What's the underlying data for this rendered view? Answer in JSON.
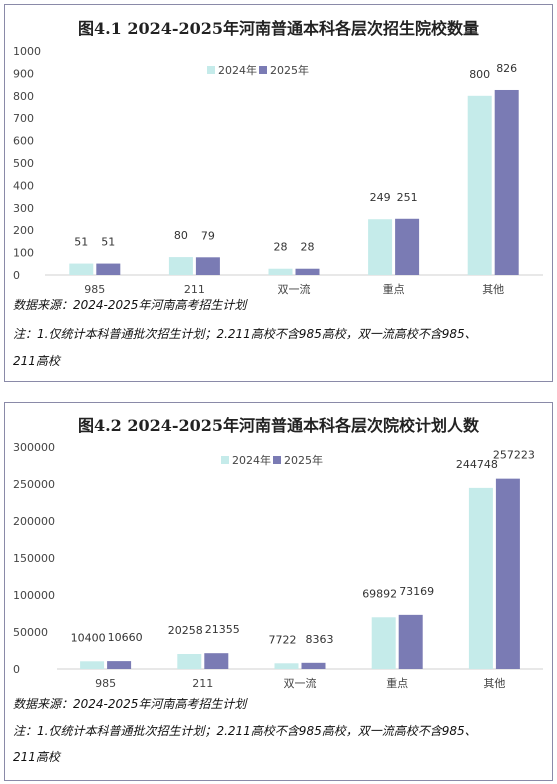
{
  "colors": {
    "series_2024": "#c5ebea",
    "series_2025": "#7a7bb4",
    "axis": "#d0d0d0",
    "text": "#444444"
  },
  "chart_data": [
    {
      "type": "bar",
      "title": "图4.1 2024-2025年河南普通本科各层次招生院校数量",
      "categories": [
        "985",
        "211",
        "双一流",
        "重点",
        "其他"
      ],
      "series": [
        {
          "name": "2024年",
          "values": [
            51,
            80,
            28,
            249,
            800
          ]
        },
        {
          "name": "2025年",
          "values": [
            51,
            79,
            28,
            251,
            826
          ]
        }
      ],
      "ylim": [
        0,
        1000
      ],
      "yticks": [
        "0",
        "100",
        "200",
        "300",
        "400",
        "500",
        "600",
        "700",
        "800",
        "900",
        "1000"
      ],
      "legend": "top-center",
      "grid": false
    },
    {
      "type": "bar",
      "title": "图4.2 2024-2025年河南普通本科各层次院校计划人数",
      "categories": [
        "985",
        "211",
        "双一流",
        "重点",
        "其他"
      ],
      "series": [
        {
          "name": "2024年",
          "values": [
            10400,
            20258,
            7722,
            69892,
            244748
          ]
        },
        {
          "name": "2025年",
          "values": [
            10660,
            21355,
            8363,
            73169,
            257223
          ]
        }
      ],
      "ylim": [
        0,
        300000
      ],
      "yticks": [
        "0",
        "50000",
        "100000",
        "150000",
        "200000",
        "250000",
        "300000"
      ],
      "legend": "top-center",
      "grid": false
    }
  ],
  "notes": [
    {
      "source": "数据来源：2024-2025年河南高考招生计划",
      "note_line1": "注：1.仅统计本科普通批次招生计划；2.211高校不含985高校，双一流高校不含985、",
      "note_line2": "211高校"
    },
    {
      "source": "数据来源：2024-2025年河南高考招生计划",
      "note_line1": "注：1.仅统计本科普通批次招生计划；2.211高校不含985高校，双一流高校不含985、",
      "note_line2": "211高校"
    }
  ]
}
